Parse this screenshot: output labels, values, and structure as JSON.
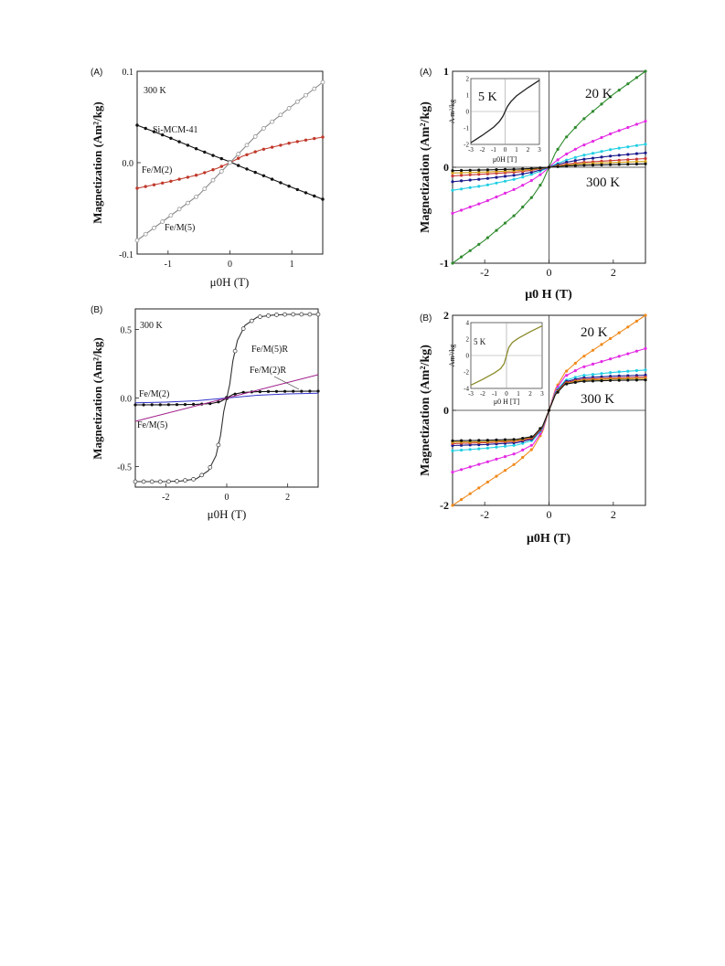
{
  "chart_data": [
    {
      "panel_label": "(A)",
      "type": "line",
      "xlabel": "μ0H  (T)",
      "ylabel": "Magnetization (Am²/kg)",
      "xlim": [
        -1.5,
        1.5
      ],
      "ylim": [
        -0.1,
        0.1
      ],
      "xticks": [
        -1,
        0,
        1
      ],
      "yticks": [
        -0.1,
        0.0,
        0.1
      ],
      "ytick_labels": [
        "-0.1",
        "0.0",
        "0.1"
      ],
      "grid": false,
      "annotations": [
        {
          "text": "300 K"
        },
        {
          "text": "Si-MCM-41"
        },
        {
          "text": "Fe/M(2)"
        },
        {
          "text": "Fe/M(5)"
        }
      ],
      "series": [
        {
          "name": "Si-MCM-41",
          "color": "#111111",
          "marker": "filled-small",
          "x": [
            -1.5,
            -1.0,
            -0.5,
            -0.2,
            0.0,
            0.2,
            0.5,
            1.0,
            1.5
          ],
          "y": [
            0.041,
            0.028,
            0.014,
            0.006,
            0.001,
            -0.005,
            -0.013,
            -0.027,
            -0.04
          ]
        },
        {
          "name": "Fe/M(2)",
          "color": "#c0392b",
          "marker": "red-dot",
          "x": [
            -1.5,
            -1.0,
            -0.5,
            -0.2,
            0.0,
            0.2,
            0.5,
            1.0,
            1.5
          ],
          "y": [
            -0.028,
            -0.021,
            -0.013,
            -0.006,
            0.0,
            0.007,
            0.014,
            0.022,
            0.028
          ]
        },
        {
          "name": "Fe/M(5)",
          "color": "#888888",
          "marker": "open-circle",
          "x": [
            -1.5,
            -1.0,
            -0.5,
            -0.2,
            0.0,
            0.2,
            0.5,
            1.0,
            1.5
          ],
          "y": [
            -0.085,
            -0.06,
            -0.035,
            -0.014,
            0.0,
            0.014,
            0.035,
            0.062,
            0.088
          ]
        }
      ]
    },
    {
      "panel_label": "(A)",
      "type": "line",
      "xlabel": "μ0 H (T)",
      "ylabel": "Magnetization  (Am²/kg)",
      "xlim": [
        -3,
        3
      ],
      "ylim": [
        -1,
        1
      ],
      "xticks": [
        -2,
        0,
        2
      ],
      "yticks": [
        -1,
        0,
        1
      ],
      "ytick_labels": [
        "-1",
        "0",
        "1"
      ],
      "grid": false,
      "annotations": [
        {
          "text": "20 K"
        },
        {
          "text": "300 K"
        }
      ],
      "series": [
        {
          "name": "20 K",
          "color": "#2e8b2e",
          "marker": "filled-dot",
          "x": [
            -3,
            -2,
            -1,
            -0.5,
            -0.2,
            0,
            0.2,
            0.5,
            1,
            2,
            3
          ],
          "y": [
            -1.0,
            -0.76,
            -0.48,
            -0.3,
            -0.15,
            0.0,
            0.15,
            0.3,
            0.48,
            0.76,
            1.0
          ]
        },
        {
          "name": "",
          "color": "#e32be3",
          "marker": "filled-dot",
          "x": [
            -3,
            -2,
            -1,
            -0.5,
            -0.2,
            0,
            0.2,
            0.5,
            1,
            2,
            3
          ],
          "y": [
            -0.48,
            -0.36,
            -0.22,
            -0.13,
            -0.06,
            0.0,
            0.06,
            0.13,
            0.22,
            0.36,
            0.48
          ]
        },
        {
          "name": "",
          "color": "#22cfe3",
          "marker": "filled-dot",
          "x": [
            -3,
            -2,
            -1,
            -0.5,
            -0.2,
            0,
            0.2,
            0.5,
            1,
            2,
            3
          ],
          "y": [
            -0.24,
            -0.19,
            -0.12,
            -0.07,
            -0.03,
            0.0,
            0.03,
            0.07,
            0.12,
            0.19,
            0.24
          ]
        },
        {
          "name": "",
          "color": "#1a1a8c",
          "marker": "filled-dot",
          "x": [
            -3,
            -2,
            -1,
            -0.5,
            -0.2,
            0,
            0.2,
            0.5,
            1,
            2,
            3
          ],
          "y": [
            -0.15,
            -0.12,
            -0.08,
            -0.05,
            -0.02,
            0.0,
            0.02,
            0.05,
            0.08,
            0.12,
            0.15
          ]
        },
        {
          "name": "",
          "color": "#c93636",
          "marker": "filled-dot",
          "x": [
            -3,
            -2,
            -1,
            -0.5,
            -0.2,
            0,
            0.2,
            0.5,
            1,
            2,
            3
          ],
          "y": [
            -0.09,
            -0.07,
            -0.05,
            -0.03,
            -0.01,
            0.0,
            0.01,
            0.03,
            0.05,
            0.07,
            0.09
          ]
        },
        {
          "name": "",
          "color": "#d4a017",
          "marker": "filled-dot",
          "x": [
            -3,
            -2,
            -1,
            -0.5,
            -0.2,
            0,
            0.2,
            0.5,
            1,
            2,
            3
          ],
          "y": [
            -0.06,
            -0.05,
            -0.035,
            -0.02,
            -0.01,
            0.0,
            0.01,
            0.02,
            0.035,
            0.05,
            0.06
          ]
        },
        {
          "name": "300 K",
          "color": "#111111",
          "marker": "filled-dot",
          "x": [
            -3,
            -2,
            -1,
            -0.5,
            -0.2,
            0,
            0.2,
            0.5,
            1,
            2,
            3
          ],
          "y": [
            -0.035,
            -0.028,
            -0.02,
            -0.012,
            -0.005,
            0.0,
            0.005,
            0.012,
            0.02,
            0.028,
            0.035
          ]
        }
      ],
      "inset": {
        "label": "5 K",
        "xlabel": "μ0H  [T]",
        "ylabel": "A m²/kg",
        "xlim": [
          -3,
          3
        ],
        "ylim": [
          -2,
          2
        ],
        "xticks": [
          -3,
          -2,
          -1,
          0,
          1,
          2,
          3
        ],
        "yticks": [
          -2,
          -1,
          0,
          1,
          2
        ],
        "color": "#222222",
        "x": [
          -3,
          -2,
          -1,
          -0.5,
          -0.2,
          0,
          0.2,
          0.5,
          1,
          2,
          3
        ],
        "y": [
          -1.9,
          -1.45,
          -0.95,
          -0.6,
          -0.3,
          0.0,
          0.3,
          0.6,
          0.95,
          1.45,
          1.9
        ]
      }
    },
    {
      "panel_label": "(B)",
      "type": "line",
      "xlabel": "μ0H (T)",
      "ylabel": "Magnetization (Am²/kg)",
      "xlim": [
        -3,
        3
      ],
      "ylim": [
        -0.65,
        0.65
      ],
      "xticks": [
        -2,
        0,
        2
      ],
      "yticks": [
        -0.5,
        0.0,
        0.5
      ],
      "ytick_labels": [
        "-0.5",
        "0.0",
        "0.5"
      ],
      "grid": false,
      "annotations": [
        {
          "text": "300 K"
        },
        {
          "text": "Fe/M(5)R"
        },
        {
          "text": "Fe/M(2)R"
        },
        {
          "text": "Fe/M(2)"
        },
        {
          "text": "Fe/M(5)"
        }
      ],
      "series": [
        {
          "name": "Fe/M(5)R",
          "color": "#333333",
          "marker": "open-circle",
          "x": [
            -3,
            -2,
            -1.5,
            -1,
            -0.6,
            -0.35,
            -0.2,
            -0.1,
            0,
            0.1,
            0.2,
            0.35,
            0.6,
            1,
            1.5,
            2,
            3
          ],
          "y": [
            -0.61,
            -0.61,
            -0.605,
            -0.59,
            -0.53,
            -0.42,
            -0.27,
            -0.1,
            0.0,
            0.1,
            0.27,
            0.42,
            0.53,
            0.59,
            0.605,
            0.61,
            0.61
          ]
        },
        {
          "name": "Fe/M(2)R",
          "color": "#111111",
          "marker": "filled-dot",
          "x": [
            -3,
            -2,
            -1,
            -0.5,
            -0.2,
            0,
            0.2,
            0.5,
            1,
            2,
            3
          ],
          "y": [
            -0.05,
            -0.049,
            -0.046,
            -0.04,
            -0.025,
            0.0,
            0.025,
            0.04,
            0.046,
            0.049,
            0.05
          ]
        },
        {
          "name": "Fe/M(2)",
          "color": "#3333cc",
          "marker": "none",
          "x": [
            -3,
            -2,
            -1,
            0,
            1,
            2,
            3
          ],
          "y": [
            -0.035,
            -0.03,
            -0.02,
            0.0,
            0.02,
            0.03,
            0.035
          ]
        },
        {
          "name": "Fe/M(5)",
          "color": "#a0208c",
          "marker": "none",
          "x": [
            -3,
            3
          ],
          "y": [
            -0.17,
            0.17
          ]
        }
      ]
    },
    {
      "panel_label": "(B)",
      "type": "line",
      "xlabel": "μ0H  (T)",
      "ylabel": "Magnetization  (Am²/kg)",
      "xlim": [
        -3,
        3
      ],
      "ylim": [
        -2,
        2
      ],
      "xticks": [
        -2,
        0,
        2
      ],
      "yticks": [
        -2,
        0,
        2
      ],
      "ytick_labels": [
        "-2",
        "0",
        "2"
      ],
      "grid": false,
      "annotations": [
        {
          "text": "20 K"
        },
        {
          "text": "300 K"
        }
      ],
      "series": [
        {
          "name": "20 K",
          "color": "#f08a1c",
          "marker": "filled-dot",
          "x": [
            -3,
            -2,
            -1,
            -0.5,
            -0.2,
            0,
            0.2,
            0.5,
            1,
            2,
            3
          ],
          "y": [
            -2.0,
            -1.55,
            -1.1,
            -0.8,
            -0.45,
            0.0,
            0.45,
            0.8,
            1.1,
            1.55,
            2.0
          ]
        },
        {
          "name": "",
          "color": "#e32be3",
          "marker": "filled-dot",
          "x": [
            -3,
            -2,
            -1,
            -0.5,
            -0.2,
            0,
            0.2,
            0.5,
            1,
            2,
            3
          ],
          "y": [
            -1.3,
            -1.1,
            -0.9,
            -0.72,
            -0.42,
            0.0,
            0.42,
            0.72,
            0.9,
            1.1,
            1.3
          ]
        },
        {
          "name": "",
          "color": "#22cfe3",
          "marker": "filled-dot",
          "x": [
            -3,
            -2,
            -1,
            -0.5,
            -0.2,
            0,
            0.2,
            0.5,
            1,
            2,
            3
          ],
          "y": [
            -0.85,
            -0.8,
            -0.73,
            -0.63,
            -0.38,
            0.0,
            0.38,
            0.63,
            0.73,
            0.8,
            0.85
          ]
        },
        {
          "name": "",
          "color": "#1a1a8c",
          "marker": "filled-dot",
          "x": [
            -3,
            -2,
            -1,
            -0.5,
            -0.2,
            0,
            0.2,
            0.5,
            1,
            2,
            3
          ],
          "y": [
            -0.74,
            -0.72,
            -0.68,
            -0.6,
            -0.36,
            0.0,
            0.36,
            0.6,
            0.68,
            0.72,
            0.74
          ]
        },
        {
          "name": "",
          "color": "#c93636",
          "marker": "filled-dot",
          "x": [
            -3,
            -2,
            -1,
            -0.5,
            -0.2,
            0,
            0.2,
            0.5,
            1,
            2,
            3
          ],
          "y": [
            -0.7,
            -0.68,
            -0.65,
            -0.58,
            -0.35,
            0.0,
            0.35,
            0.58,
            0.65,
            0.68,
            0.7
          ]
        },
        {
          "name": "",
          "color": "#d4a017",
          "marker": "filled-dot",
          "x": [
            -3,
            -2,
            -1,
            -0.5,
            -0.2,
            0,
            0.2,
            0.5,
            1,
            2,
            3
          ],
          "y": [
            -0.67,
            -0.66,
            -0.63,
            -0.56,
            -0.34,
            0.0,
            0.34,
            0.56,
            0.63,
            0.66,
            0.67
          ]
        },
        {
          "name": "300 K",
          "color": "#111111",
          "marker": "filled-dot",
          "x": [
            -3,
            -2,
            -1,
            -0.5,
            -0.2,
            0,
            0.2,
            0.5,
            1,
            2,
            3
          ],
          "y": [
            -0.64,
            -0.63,
            -0.61,
            -0.55,
            -0.33,
            0.0,
            0.33,
            0.55,
            0.61,
            0.63,
            0.64
          ]
        }
      ],
      "inset": {
        "label": "5 K",
        "xlabel": "μ0 H [T]",
        "ylabel": "Am²/kg",
        "xlim": [
          -3,
          3
        ],
        "ylim": [
          -4,
          4
        ],
        "xticks": [
          -3,
          -2,
          -1,
          0,
          1,
          2,
          3
        ],
        "yticks": [
          -4,
          -2,
          0,
          2,
          4
        ],
        "color": "#8a8a2a",
        "x": [
          -3,
          -2,
          -1,
          -0.5,
          -0.2,
          0,
          0.2,
          0.5,
          1,
          2,
          3
        ],
        "y": [
          -3.6,
          -2.9,
          -2.1,
          -1.6,
          -1.0,
          0.0,
          1.0,
          1.6,
          2.1,
          2.9,
          3.6
        ]
      }
    }
  ]
}
